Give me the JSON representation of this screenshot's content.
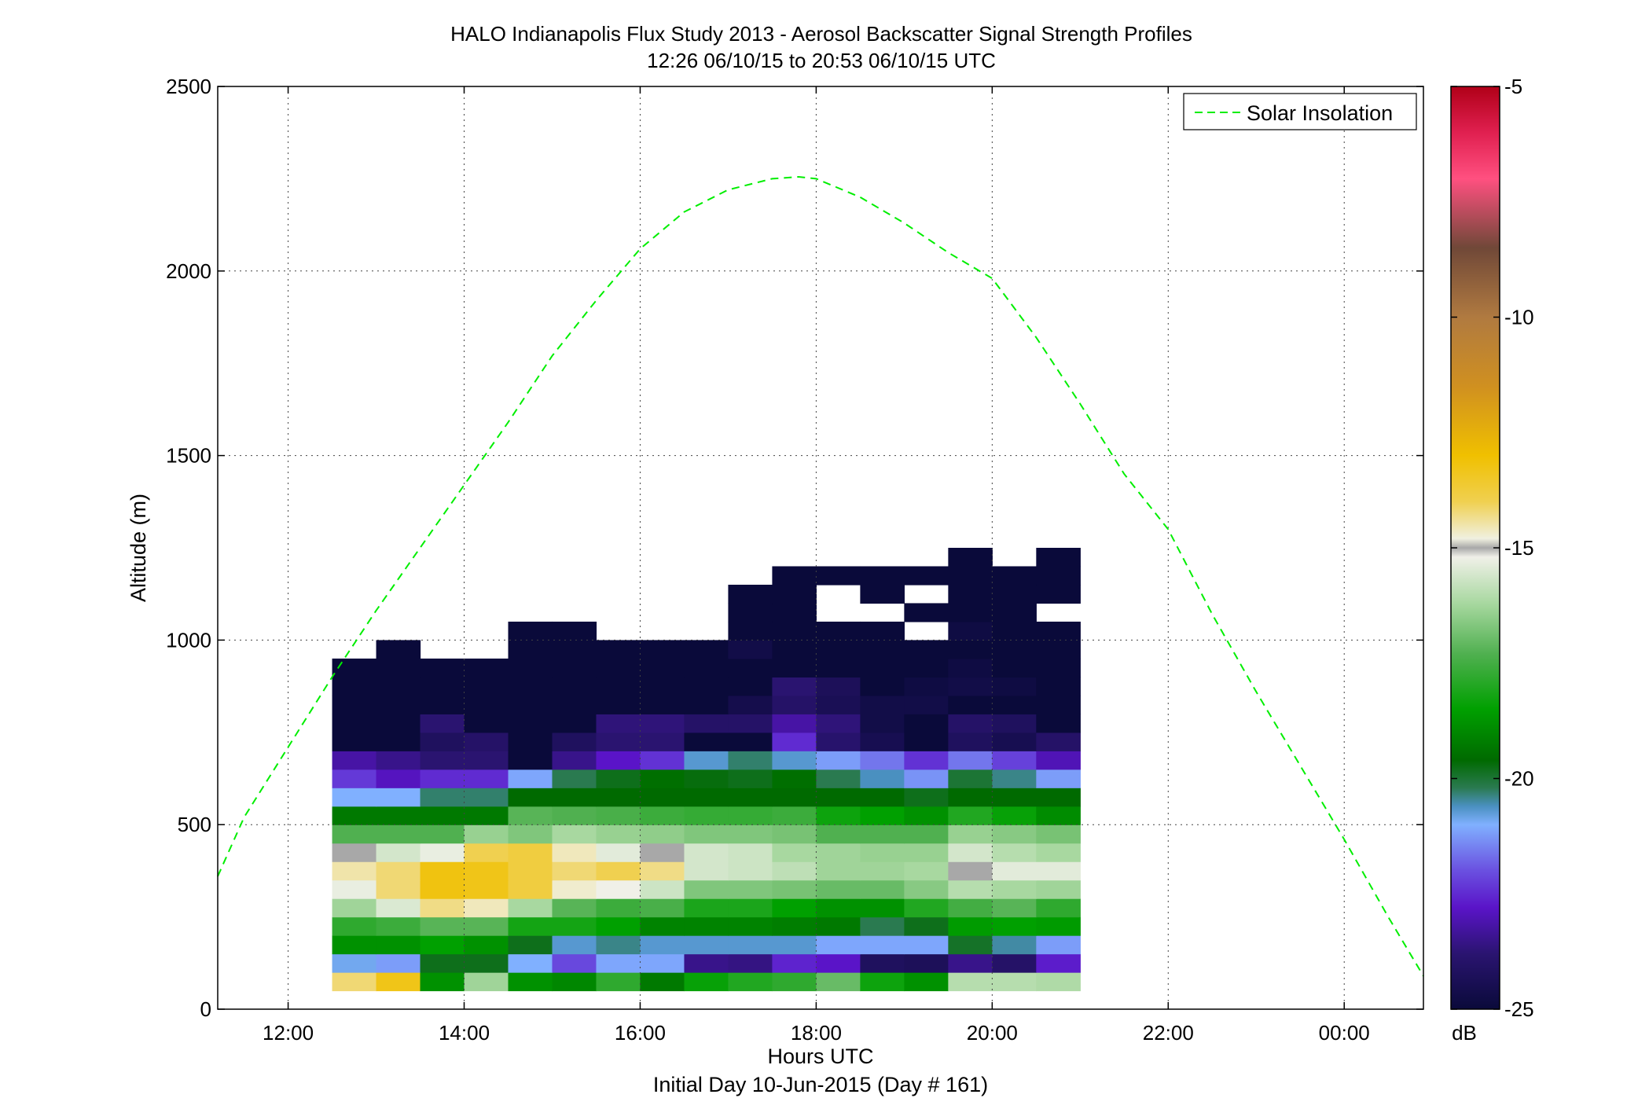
{
  "chart_data": {
    "type": "heatmap",
    "title": "HALO Indianapolis Flux Study 2013 - Aerosol Backscatter Signal Strength Profiles",
    "subtitle": "12:26 06/10/15 to 20:53 06/10/15  UTC",
    "xlabel": "Hours UTC",
    "footer": "Initial Day 10-Jun-2015 (Day # 161)",
    "ylabel": "Altitude (m)",
    "xlim": [
      11.2,
      24.9
    ],
    "ylim": [
      0,
      2500
    ],
    "x_ticks": [
      {
        "value": 12,
        "label": "12:00"
      },
      {
        "value": 14,
        "label": "14:00"
      },
      {
        "value": 16,
        "label": "16:00"
      },
      {
        "value": 18,
        "label": "18:00"
      },
      {
        "value": 20,
        "label": "20:00"
      },
      {
        "value": 22,
        "label": "22:00"
      },
      {
        "value": 24,
        "label": "00:00"
      }
    ],
    "y_ticks": [
      {
        "value": 0,
        "label": "0"
      },
      {
        "value": 500,
        "label": "500"
      },
      {
        "value": 1000,
        "label": "1000"
      },
      {
        "value": 1500,
        "label": "1500"
      },
      {
        "value": 2000,
        "label": "2000"
      },
      {
        "value": 2500,
        "label": "2500"
      }
    ],
    "grid": true,
    "legend": {
      "placement": "top-right",
      "entries": [
        {
          "name": "Solar Insolation",
          "color": "#00ee00",
          "style": "dashed"
        }
      ]
    },
    "colorbar": {
      "unit": "dB",
      "range": [
        -25,
        -5
      ],
      "ticks": [
        {
          "value": -5,
          "label": "-5"
        },
        {
          "value": -10,
          "label": "-10"
        },
        {
          "value": -15,
          "label": "-15"
        },
        {
          "value": -20,
          "label": "-20"
        },
        {
          "value": -25,
          "label": "-25"
        }
      ],
      "stops": [
        {
          "value": -25,
          "color": "#0a0a3a"
        },
        {
          "value": -23.8,
          "color": "#2a1470"
        },
        {
          "value": -22.8,
          "color": "#5a14c8"
        },
        {
          "value": -22,
          "color": "#6a50e0"
        },
        {
          "value": -21,
          "color": "#80b0ff"
        },
        {
          "value": -20.6,
          "color": "#4a90c0"
        },
        {
          "value": -20.2,
          "color": "#2a7a50"
        },
        {
          "value": -19.6,
          "color": "#006a00"
        },
        {
          "value": -18.5,
          "color": "#00a000"
        },
        {
          "value": -17.3,
          "color": "#50b050"
        },
        {
          "value": -16.2,
          "color": "#a8d8a0"
        },
        {
          "value": -15.2,
          "color": "#f0f0e8"
        },
        {
          "value": -15.0,
          "color": "#a8a8a8"
        },
        {
          "value": -14.8,
          "color": "#f0f0e0"
        },
        {
          "value": -14,
          "color": "#f0d050"
        },
        {
          "value": -13,
          "color": "#f0c000"
        },
        {
          "value": -11.5,
          "color": "#d09020"
        },
        {
          "value": -10,
          "color": "#b07a40"
        },
        {
          "value": -8.5,
          "color": "#704838"
        },
        {
          "value": -7,
          "color": "#ff5080"
        },
        {
          "value": -6,
          "color": "#e02050"
        },
        {
          "value": -5,
          "color": "#b00018"
        }
      ]
    },
    "time_bins": [
      12.5,
      13.0,
      13.5,
      14.0,
      14.5,
      15.0,
      15.5,
      16.0,
      16.5,
      17.0,
      17.5,
      18.0,
      18.5,
      19.0,
      19.5,
      20.0,
      20.5
    ],
    "bin_width_hours": 0.5,
    "altitude_bins": [
      50,
      100,
      150,
      200,
      250,
      300,
      350,
      400,
      450,
      500,
      550,
      600,
      650,
      700,
      750,
      800,
      850,
      900,
      950,
      1000,
      1050,
      1100,
      1150,
      1200
    ],
    "bin_height_m": 50,
    "values_db": [
      [
        -14.2,
        -13.3,
        -18.8,
        -16.3,
        -18.8,
        -19.0,
        -17.8,
        -19.3,
        -18.4,
        -18.0,
        -17.8,
        -17.0,
        -18.3,
        -18.8,
        -16.0,
        -16.0,
        -16.1
      ],
      [
        -20.9,
        -21.2,
        -19.8,
        -19.8,
        -21.0,
        -22.1,
        -21.1,
        -21.1,
        -23.5,
        -23.6,
        -22.6,
        -22.8,
        -24.2,
        -24.3,
        -23.5,
        -24.0,
        -22.7
      ],
      [
        -18.8,
        -18.8,
        -18.5,
        -18.8,
        -19.8,
        -20.7,
        -20.4,
        -20.7,
        -20.7,
        -20.7,
        -20.7,
        -21.1,
        -21.1,
        -21.1,
        -19.9,
        -20.5,
        -21.2
      ],
      [
        -17.8,
        -17.6,
        -17.2,
        -17.2,
        -18.2,
        -18.2,
        -18.5,
        -19.1,
        -19.1,
        -19.1,
        -19.2,
        -19.3,
        -20.2,
        -19.8,
        -18.6,
        -18.5,
        -18.6
      ],
      [
        -16.3,
        -15.5,
        -14.3,
        -14.6,
        -16.2,
        -17.2,
        -17.6,
        -17.4,
        -18.1,
        -18.1,
        -18.5,
        -18.8,
        -18.8,
        -18.0,
        -17.5,
        -17.2,
        -17.8
      ],
      [
        -15.3,
        -14.2,
        -13.2,
        -13.3,
        -13.8,
        -14.7,
        -15.2,
        -15.7,
        -16.7,
        -16.7,
        -16.8,
        -17.0,
        -17.0,
        -16.6,
        -16.0,
        -16.2,
        -16.3
      ],
      [
        -14.5,
        -14.2,
        -13.2,
        -13.3,
        -13.8,
        -14.2,
        -14.0,
        -14.3,
        -15.6,
        -15.7,
        -15.9,
        -16.3,
        -16.3,
        -16.2,
        -15.0,
        -15.4,
        -15.4
      ],
      [
        -15.0,
        -15.6,
        -15.3,
        -14.0,
        -13.8,
        -14.6,
        -15.4,
        -15.0,
        -15.6,
        -15.7,
        -16.2,
        -16.3,
        -16.4,
        -16.4,
        -15.6,
        -16.0,
        -16.2
      ],
      [
        -17.3,
        -17.3,
        -17.3,
        -16.4,
        -16.7,
        -16.2,
        -16.4,
        -16.5,
        -16.7,
        -16.7,
        -16.8,
        -17.3,
        -17.3,
        -17.3,
        -16.4,
        -16.6,
        -16.8
      ],
      [
        -19.3,
        -19.3,
        -19.3,
        -19.3,
        -17.2,
        -17.3,
        -17.4,
        -17.6,
        -17.7,
        -17.7,
        -17.6,
        -18.3,
        -18.5,
        -18.8,
        -18.0,
        -18.4,
        -18.9
      ],
      [
        -21.0,
        -21.0,
        -20.3,
        -20.3,
        -19.6,
        -19.6,
        -19.6,
        -19.6,
        -19.6,
        -19.6,
        -19.6,
        -19.6,
        -19.6,
        -19.8,
        -19.6,
        -19.6,
        -19.6
      ],
      [
        -22.3,
        -22.9,
        -22.5,
        -22.5,
        -21.1,
        -20.2,
        -19.8,
        -19.5,
        -19.7,
        -19.8,
        -19.5,
        -20.2,
        -20.6,
        -21.3,
        -20.0,
        -20.4,
        -21.2
      ],
      [
        -23.2,
        -23.5,
        -23.8,
        -23.8,
        -25.0,
        -23.5,
        -22.8,
        -22.4,
        -20.7,
        -20.3,
        -20.7,
        -21.2,
        -21.6,
        -22.4,
        -21.6,
        -22.2,
        -23.0
      ],
      [
        -25.0,
        -25.0,
        -24.2,
        -24.0,
        -25.0,
        -24.2,
        -23.8,
        -23.8,
        -25.0,
        -25.0,
        -22.5,
        -23.9,
        -24.5,
        -25.0,
        -24.2,
        -24.5,
        -24.0
      ],
      [
        -25.0,
        -25.0,
        -23.8,
        -25.0,
        -25.0,
        -25.0,
        -23.7,
        -23.7,
        -24.0,
        -24.0,
        -23.2,
        -23.7,
        -24.7,
        -25.0,
        -24.0,
        -24.2,
        -25.0
      ],
      [
        -25.0,
        -25.0,
        -25.0,
        -25.0,
        -25.0,
        -25.0,
        -25.0,
        -25.0,
        -25.0,
        -24.6,
        -24.0,
        -24.4,
        -24.7,
        -24.7,
        -25.0,
        -25.0,
        -25.0
      ],
      [
        -25.0,
        -25.0,
        -25.0,
        -25.0,
        -25.0,
        -25.0,
        -25.0,
        -25.0,
        -25.0,
        -25.0,
        -23.8,
        -24.3,
        -25.0,
        -24.8,
        -24.7,
        -24.8,
        -25.0
      ],
      [
        -25.0,
        -25.0,
        -25.0,
        -25.0,
        -25.0,
        -25.0,
        -25.0,
        -25.0,
        -25.0,
        -25.0,
        -25.0,
        -25.0,
        -25.0,
        -25.0,
        -24.8,
        -25.0,
        -25.0
      ],
      [
        null,
        -25.0,
        null,
        null,
        -25.0,
        -25.0,
        -25.0,
        -25.0,
        -25.0,
        -24.7,
        -25.0,
        -25.0,
        -25.0,
        -25.0,
        -25.0,
        -25.0,
        -25.0
      ],
      [
        null,
        null,
        null,
        null,
        -25.0,
        -25.0,
        null,
        null,
        null,
        -25.0,
        -25.0,
        -25.0,
        -25.0,
        null,
        -24.8,
        -25.0,
        -25.0
      ],
      [
        null,
        null,
        null,
        null,
        null,
        null,
        null,
        null,
        null,
        -25.0,
        -25.0,
        null,
        null,
        -25.0,
        -25.0,
        -25.0,
        null
      ],
      [
        null,
        null,
        null,
        null,
        null,
        null,
        null,
        null,
        null,
        -25.0,
        -25.0,
        null,
        -25.0,
        null,
        -25.0,
        -25.0,
        -25.0
      ],
      [
        null,
        null,
        null,
        null,
        null,
        null,
        null,
        null,
        null,
        null,
        -25.0,
        -25.0,
        -25.0,
        -25.0,
        -25.0,
        -25.0,
        -25.0
      ],
      [
        null,
        null,
        null,
        null,
        null,
        null,
        null,
        null,
        null,
        null,
        null,
        null,
        null,
        null,
        -25.0,
        null,
        -25.0
      ]
    ],
    "solar_insolation": {
      "name": "Solar Insolation",
      "x": [
        11.2,
        11.5,
        12.0,
        12.5,
        13.0,
        13.5,
        14.0,
        14.5,
        15.0,
        15.5,
        16.0,
        16.5,
        17.0,
        17.5,
        17.8,
        18.0,
        18.5,
        19.0,
        19.5,
        20.0,
        20.5,
        21.0,
        21.5,
        22.0,
        22.5,
        23.0,
        23.5,
        24.0,
        24.5,
        24.9
      ],
      "y": [
        360,
        520,
        710,
        900,
        1080,
        1250,
        1420,
        1590,
        1770,
        1920,
        2060,
        2160,
        2220,
        2250,
        2255,
        2250,
        2200,
        2130,
        2050,
        1980,
        1820,
        1640,
        1450,
        1300,
        1070,
        860,
        660,
        460,
        250,
        90
      ]
    }
  }
}
